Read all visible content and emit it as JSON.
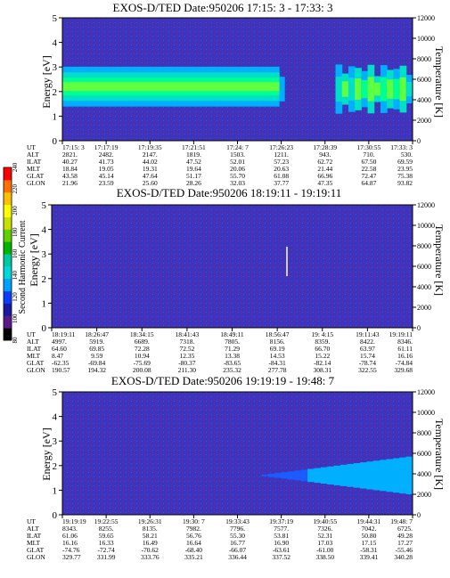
{
  "colorbar": {
    "label": "Second Harmonic Current",
    "ticks": [
      "80",
      "100",
      "120",
      "140",
      "160",
      "180",
      "200",
      "220",
      "240"
    ],
    "colors": [
      "#000000",
      "#5b1a8a",
      "#1a1aa0",
      "#0d3cff",
      "#00a0ff",
      "#00d8d8",
      "#00c8a0",
      "#00b400",
      "#60d000",
      "#c8e000",
      "#ffff00",
      "#ffc000",
      "#ff7000",
      "#ff0000"
    ]
  },
  "chart_data": [
    {
      "type": "heatmap",
      "title": "EXOS-D/TED   Date:950206  17:15: 3 - 17:33: 3",
      "ylabel": "Energy [eV]",
      "ylabel_right": "Temperature [K]",
      "ylim": [
        0,
        5
      ],
      "ylim_right": [
        0,
        12000
      ],
      "yticks": [
        "0",
        "1",
        "2",
        "3",
        "4",
        "5"
      ],
      "yticks_right": [
        "0",
        "2000",
        "4000",
        "6000",
        "8000",
        "10000",
        "12000"
      ],
      "features": {
        "band_center_ev_before": 2.2,
        "band_center_ev_after": 2.1,
        "band_width_ev": 0.9,
        "band_end_fraction": 0.62,
        "burst_start_fraction": 0.78,
        "band_peak_color": "#00ff80"
      },
      "table": {
        "row_labels": [
          "UT",
          "ALT",
          "ILAT",
          "MLT",
          "GLAT",
          "GLON"
        ],
        "columns": [
          [
            "17:15: 3",
            "2821.",
            "40.27",
            "18.84",
            "43.58",
            "21.96"
          ],
          [
            "17:17:19",
            "2482.",
            "41.73",
            "19.05",
            "45.14",
            "23.59"
          ],
          [
            "17:19:35",
            "2147.",
            "44.02",
            "19.31",
            "47.64",
            "25.60"
          ],
          [
            "17:21:51",
            "1819.",
            "47.52",
            "19.64",
            "51.17",
            "28.26"
          ],
          [
            "17:24: 7",
            "1503.",
            "52.01",
            "20.06",
            "55.70",
            "32.03"
          ],
          [
            "17:26:23",
            "1211.",
            "57.23",
            "20.63",
            "61.08",
            "37.77"
          ],
          [
            "17:28:39",
            "943.",
            "62.72",
            "21.44",
            "66.96",
            "47.35"
          ],
          [
            "17:30:55",
            "710.",
            "67.50",
            "22.58",
            "72.47",
            "64.87"
          ],
          [
            "17:33: 3",
            "530.",
            "69.59",
            "23.95",
            "75.38",
            "93.82"
          ]
        ]
      }
    },
    {
      "type": "heatmap",
      "title": "EXOS-D/TED   Date:950206  18:19:11 - 19:19:11",
      "ylabel": "Energy [eV]",
      "ylabel_right": "Temperature [K]",
      "ylim": [
        0,
        5
      ],
      "ylim_right": [
        0,
        12000
      ],
      "yticks": [
        "0",
        "1",
        "2",
        "3",
        "4",
        "5"
      ],
      "yticks_right": [
        "0",
        "2000",
        "4000",
        "6000",
        "8000",
        "10000",
        "12000"
      ],
      "features": {
        "spike_fraction": 0.65,
        "spike_ev_range": [
          2.1,
          3.3
        ]
      },
      "table": {
        "row_labels": [
          "UT",
          "ALT",
          "ILAT",
          "MLT",
          "GLAT",
          "GLON"
        ],
        "columns": [
          [
            "18:19:11",
            "4997.",
            "64.60",
            "8.47",
            "-62.35",
            "190.57"
          ],
          [
            "18:26:47",
            "5919.",
            "69.85",
            "9.59",
            "-69.84",
            "194.32"
          ],
          [
            "18:34:15",
            "6689.",
            "72.28",
            "10.94",
            "-75.69",
            "200.08"
          ],
          [
            "18:41:43",
            "7318.",
            "72.52",
            "12.35",
            "-80.37",
            "211.30"
          ],
          [
            "18:49:11",
            "7805.",
            "71.29",
            "13.38",
            "-83.65",
            "235.32"
          ],
          [
            "18:56:47",
            "8156.",
            "69.19",
            "14.53",
            "-84.31",
            "277.78"
          ],
          [
            "19: 4:15",
            "8359.",
            "66.70",
            "15.22",
            "-82.14",
            "308.31"
          ],
          [
            "19:11:43",
            "8422.",
            "63.97",
            "15.74",
            "-78.74",
            "322.55"
          ],
          [
            "19:19:11",
            "8346.",
            "61.11",
            "16.16",
            "-74.84",
            "329.68"
          ]
        ]
      }
    },
    {
      "type": "heatmap",
      "title": "EXOS-D/TED   Date:950206  19:19:19 - 19:48: 7",
      "ylabel": "Energy [eV]",
      "ylabel_right": "Temperature [K]",
      "ylim": [
        0,
        5
      ],
      "ylim_right": [
        0,
        12000
      ],
      "yticks": [
        "0",
        "1",
        "2",
        "3",
        "4",
        "5"
      ],
      "yticks_right": [
        "0",
        "2000",
        "4000",
        "6000",
        "8000",
        "10000",
        "12000"
      ],
      "features": {
        "wedge_start_fraction": 0.55,
        "wedge_center_ev": 1.6,
        "wedge_max_halfwidth_ev": 0.8
      },
      "table": {
        "row_labels": [
          "UT",
          "ALT",
          "ILAT",
          "MLT",
          "GLAT",
          "GLON"
        ],
        "columns": [
          [
            "19:19:19",
            "8343.",
            "61.06",
            "16.16",
            "-74.76",
            "329.77"
          ],
          [
            "19:22:55",
            "8255.",
            "59.65",
            "16.33",
            "-72.74",
            "331.99"
          ],
          [
            "19:26:31",
            "8135.",
            "58.21",
            "16.49",
            "-70.62",
            "333.76"
          ],
          [
            "19:30: 7",
            "7982.",
            "56.76",
            "16.64",
            "-68.40",
            "335.21"
          ],
          [
            "19:33:43",
            "7796.",
            "55.30",
            "16.77",
            "-66.07",
            "336.44"
          ],
          [
            "19:37:19",
            "7577.",
            "53.81",
            "16.90",
            "-63.61",
            "337.52"
          ],
          [
            "19:40:55",
            "7326.",
            "52.31",
            "17.03",
            "-61.00",
            "338.50"
          ],
          [
            "19:44:31",
            "7042.",
            "50.80",
            "17.15",
            "-58.31",
            "339.41"
          ],
          [
            "19:48: 7",
            "6725.",
            "49.28",
            "17.27",
            "-55.46",
            "340.28"
          ]
        ]
      }
    }
  ]
}
